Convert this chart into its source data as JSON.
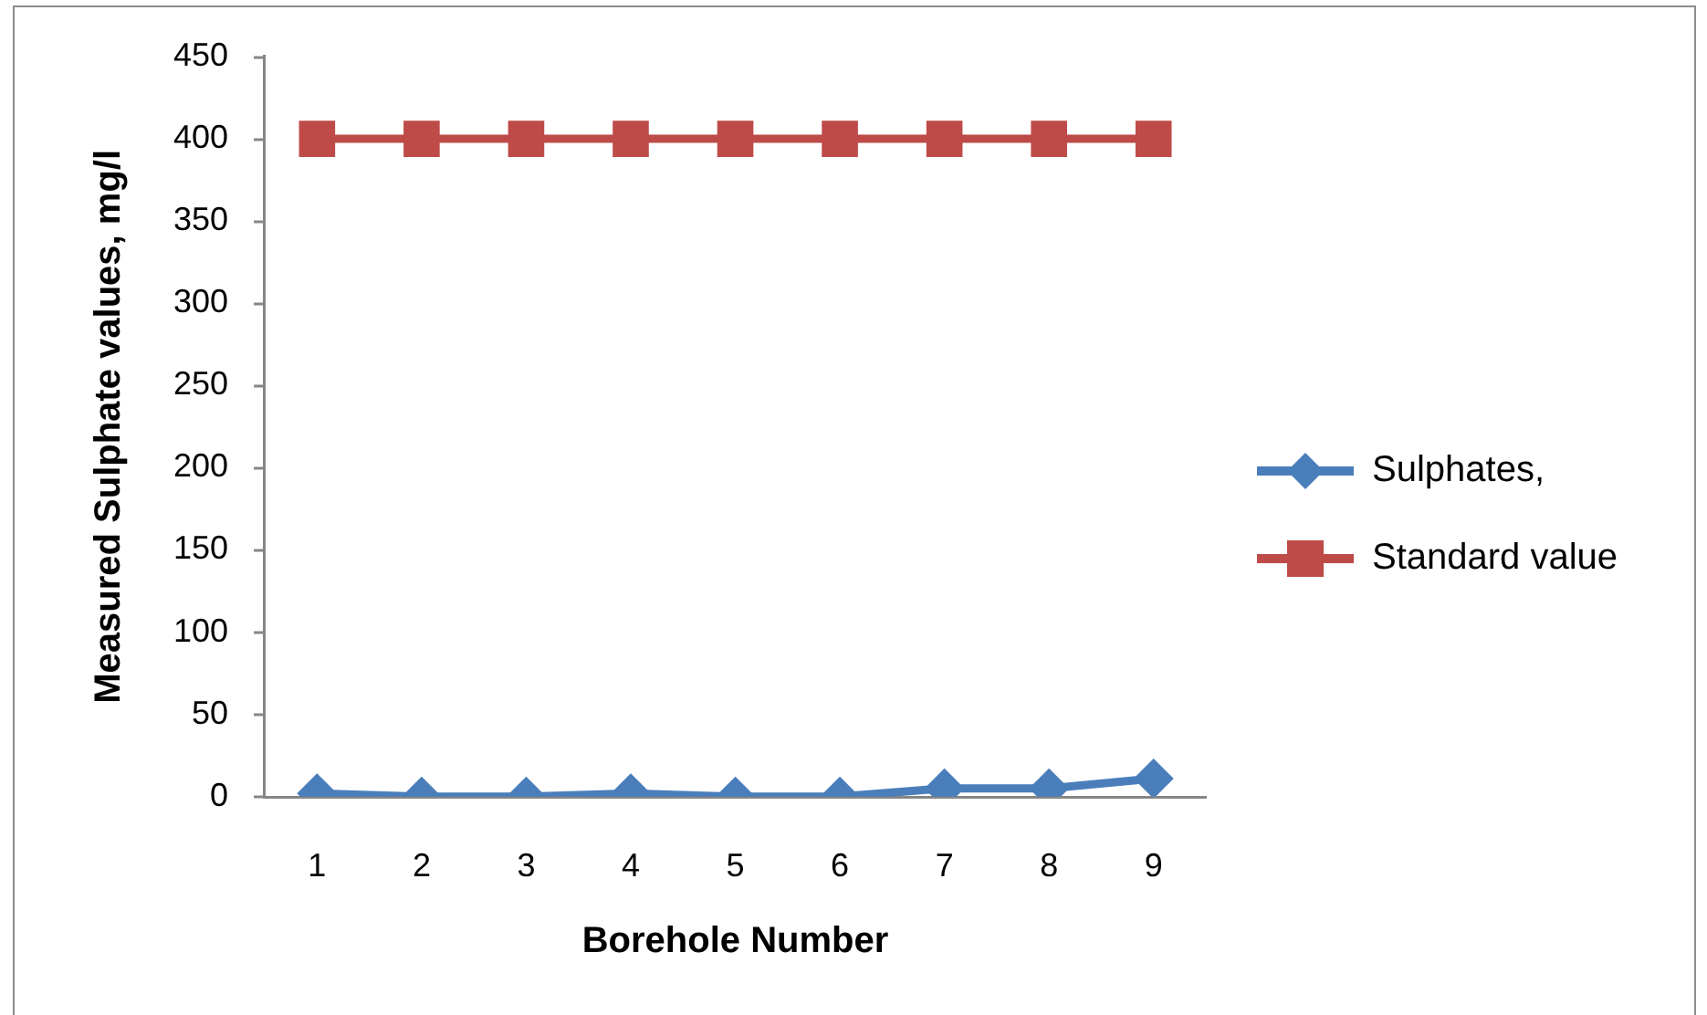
{
  "chart_data": {
    "type": "line",
    "xlabel": "Borehole Number",
    "ylabel": "Measured Sulphate values, mg/l",
    "categories": [
      "1",
      "2",
      "3",
      "4",
      "5",
      "6",
      "7",
      "8",
      "9"
    ],
    "series": [
      {
        "name": "Sulphates,",
        "color": "#4a7ebb",
        "marker": "diamond",
        "values": [
          2,
          0,
          0,
          2,
          0,
          0,
          5,
          5,
          11
        ]
      },
      {
        "name": "Standard value",
        "color": "#be4b48",
        "marker": "square",
        "values": [
          400,
          400,
          400,
          400,
          400,
          400,
          400,
          400,
          400
        ]
      }
    ],
    "ylim": [
      0,
      450
    ],
    "yticks": [
      0,
      50,
      100,
      150,
      200,
      250,
      300,
      350,
      400,
      450
    ],
    "legend": "right"
  }
}
